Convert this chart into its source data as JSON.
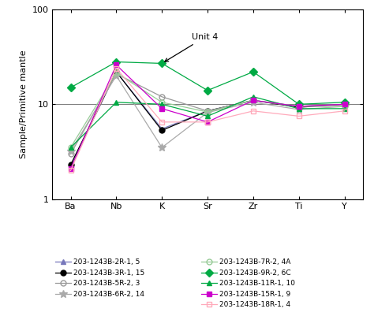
{
  "x_labels": [
    "Ba",
    "Nb",
    "K",
    "Sr",
    "Zr",
    "Ti",
    "Y"
  ],
  "y_label": "Sample/Primitive mantle",
  "ylim": [
    1,
    100
  ],
  "reference_line": 10,
  "annotation_text": "Unit 4",
  "series": [
    {
      "label": "203-1243B-2R-1, 5",
      "color": "#7777bb",
      "marker": "^",
      "markersize": 5,
      "fillstyle": "full",
      "linestyle": "-",
      "values": [
        2.2,
        22,
        5.5,
        8.5,
        11,
        9.5,
        10
      ]
    },
    {
      "label": "203-1243B-3R-1, 15",
      "color": "#000000",
      "marker": "o",
      "markersize": 5,
      "fillstyle": "full",
      "linestyle": "-",
      "values": [
        2.3,
        22,
        5.3,
        8.5,
        11,
        9.3,
        10
      ]
    },
    {
      "label": "203-1243B-5R-2, 3",
      "color": "#999999",
      "marker": "o",
      "markersize": 5,
      "fillstyle": "none",
      "linestyle": "-",
      "values": [
        3.0,
        21,
        12,
        8.5,
        11,
        9.5,
        10
      ]
    },
    {
      "label": "203-1243B-6R-2, 14",
      "color": "#aaaaaa",
      "marker": "*",
      "markersize": 7,
      "fillstyle": "full",
      "linestyle": "-",
      "values": [
        3.2,
        20,
        3.5,
        8.2,
        10.5,
        8.8,
        9.5
      ]
    },
    {
      "label": "203-1243B-7R-2, 4A",
      "color": "#99cc99",
      "marker": "o",
      "markersize": 5,
      "fillstyle": "none",
      "linestyle": "-",
      "values": [
        3.5,
        21.5,
        10.5,
        8.3,
        11,
        9.5,
        9.5
      ]
    },
    {
      "label": "203-1243B-9R-2, 6C",
      "color": "#00aa44",
      "marker": "D",
      "markersize": 5,
      "fillstyle": "full",
      "linestyle": "-",
      "values": [
        15,
        28,
        27,
        14,
        22,
        10,
        10.5
      ]
    },
    {
      "label": "203-1243B-11R-1, 10",
      "color": "#00aa44",
      "marker": "^",
      "markersize": 5,
      "fillstyle": "full",
      "linestyle": "-",
      "values": [
        3.5,
        10.5,
        10,
        7.5,
        12,
        9,
        9
      ]
    },
    {
      "label": "203-1243B-15R-1, 9",
      "color": "#cc00cc",
      "marker": "s",
      "markersize": 5,
      "fillstyle": "full",
      "linestyle": "-",
      "values": [
        2.1,
        26,
        9,
        6.5,
        11,
        9.5,
        10
      ]
    },
    {
      "label": "203-1243B-18R-1, 4",
      "color": "#ffaabb",
      "marker": "s",
      "markersize": 5,
      "fillstyle": "none",
      "linestyle": "-",
      "values": [
        2.0,
        24,
        6.5,
        6.5,
        8.5,
        7.5,
        8.5
      ]
    }
  ],
  "legend_col1": [
    0,
    1,
    2,
    3
  ],
  "legend_col2": [
    4,
    5,
    6,
    7,
    8
  ]
}
